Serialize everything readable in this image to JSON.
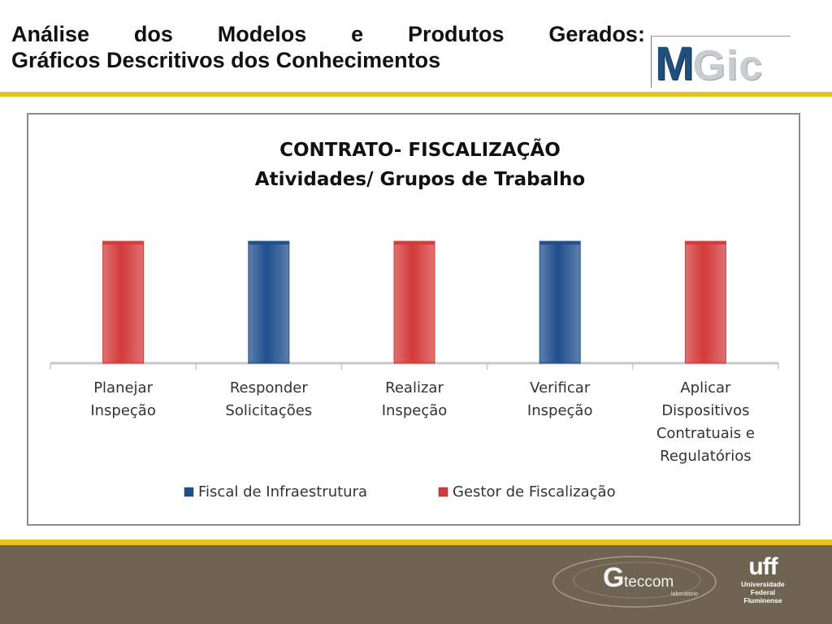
{
  "slide": {
    "title_line1_words": [
      "Análise",
      "dos",
      "Modelos",
      "e",
      "Produtos",
      "Gerados:"
    ],
    "title_line2": "Gráficos Descritivos dos Conhecimentos"
  },
  "logo": {
    "m": "M",
    "gic": "Gic"
  },
  "footer": {
    "gteccom": {
      "g": "G",
      "rest": "teccom",
      "sub": "laboratório"
    },
    "uff": {
      "mark": "uff",
      "lines": [
        "Universidade",
        "Federal",
        "Fluminense"
      ]
    }
  },
  "colors": {
    "accent_gold": "#e8c31c",
    "footer_bg": "#6f6452",
    "fiscal_blue": "#1f4e8c",
    "gestor_red": "#d33a3a"
  },
  "chart_data": {
    "type": "bar",
    "title": [
      "CONTRATO- FISCALIZAÇÃO",
      "Atividades/ Grupos de Trabalho"
    ],
    "categories": [
      [
        "Planejar",
        "Inspeção"
      ],
      [
        "Responder",
        "Solicitações"
      ],
      [
        "Realizar",
        "Inspeção"
      ],
      [
        "Verificar",
        "Inspeção"
      ],
      [
        "Aplicar",
        "Dispositivos",
        "Contratuais e",
        "Regulatórios"
      ]
    ],
    "series": [
      {
        "name": "Fiscal de Infraestrutura",
        "color": "#1f4e8c",
        "values": [
          0,
          1,
          0,
          1,
          0
        ]
      },
      {
        "name": "Gestor de Fiscalização",
        "color": "#d33a3a",
        "values": [
          1,
          0,
          1,
          0,
          1
        ]
      }
    ],
    "ylim": [
      0,
      1
    ],
    "grid": false,
    "legend": "bottom"
  }
}
